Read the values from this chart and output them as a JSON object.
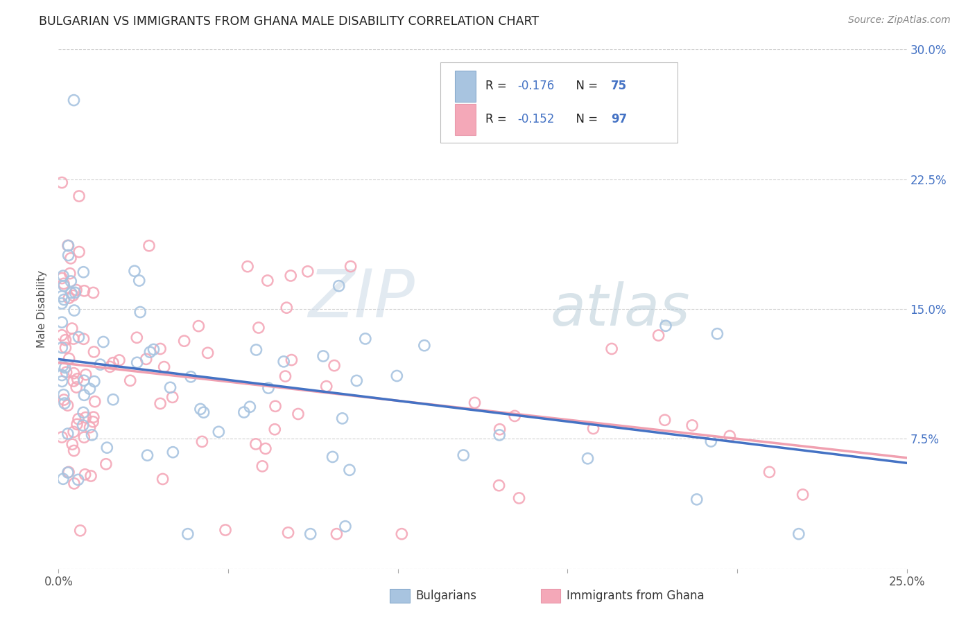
{
  "title": "BULGARIAN VS IMMIGRANTS FROM GHANA MALE DISABILITY CORRELATION CHART",
  "source": "Source: ZipAtlas.com",
  "ylabel": "Male Disability",
  "watermark": "ZIPatlas",
  "xlim": [
    0.0,
    0.25
  ],
  "ylim": [
    0.0,
    0.3
  ],
  "series1_label": "Bulgarians",
  "series2_label": "Immigrants from Ghana",
  "series1_R": "-0.176",
  "series1_N": "75",
  "series2_R": "-0.152",
  "series2_N": "97",
  "series1_color": "#a8c4e0",
  "series2_color": "#f4a8b8",
  "series1_line_color": "#4472c4",
  "series2_line_color": "#f0a0b0",
  "bg_color": "#ffffff",
  "grid_color": "#cccccc",
  "blue_text_color": "#4472c4",
  "title_color": "#222222",
  "source_color": "#888888",
  "line1_start_y": 0.121,
  "line1_end_y": 0.061,
  "line2_start_y": 0.119,
  "line2_end_y": 0.064
}
